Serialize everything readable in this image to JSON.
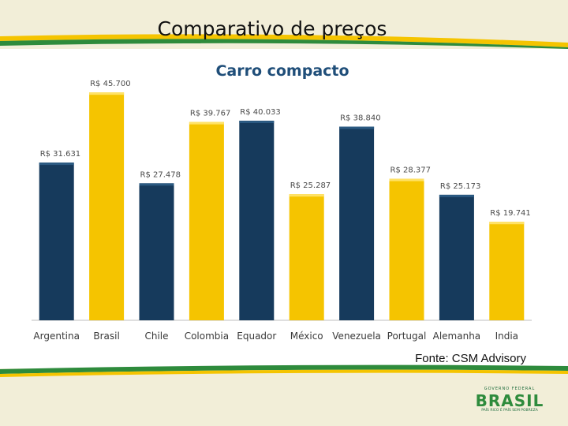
{
  "slide": {
    "title": "Comparativo de preços",
    "source": "Fonte: CSM Advisory"
  },
  "logo": {
    "top_text": "GOVERNO FEDERAL",
    "word": "BRASIL",
    "tagline": "PAÍS RICO É PAÍS SEM POBREZA"
  },
  "colors": {
    "navy": "#163a5c",
    "gold": "#f5c400",
    "green": "#2e8b3c"
  },
  "chart_data": {
    "type": "bar",
    "title": "Carro compacto",
    "categories": [
      "Argentina",
      "Brasil",
      "Chile",
      "Colombia",
      "Equador",
      "México",
      "Venezuela",
      "Portugal",
      "Alemanha",
      "India"
    ],
    "values": [
      31631,
      45700,
      27478,
      39767,
      40033,
      25287,
      38840,
      28377,
      25173,
      19741
    ],
    "data_labels": [
      "R$ 31.631",
      "R$ 45.700",
      "R$ 27.478",
      "R$ 39.767",
      "R$ 40.033",
      "R$ 25.287",
      "R$ 38.840",
      "R$ 28.377",
      "R$ 25.173",
      "R$ 19.741"
    ],
    "bar_colors": [
      "#163a5c",
      "#f5c400",
      "#163a5c",
      "#f5c400",
      "#163a5c",
      "#f5c400",
      "#163a5c",
      "#f5c400",
      "#163a5c",
      "#f5c400"
    ],
    "ylim": [
      0,
      50000
    ],
    "grid": false,
    "legend": "none",
    "xlabel": "",
    "ylabel": ""
  }
}
